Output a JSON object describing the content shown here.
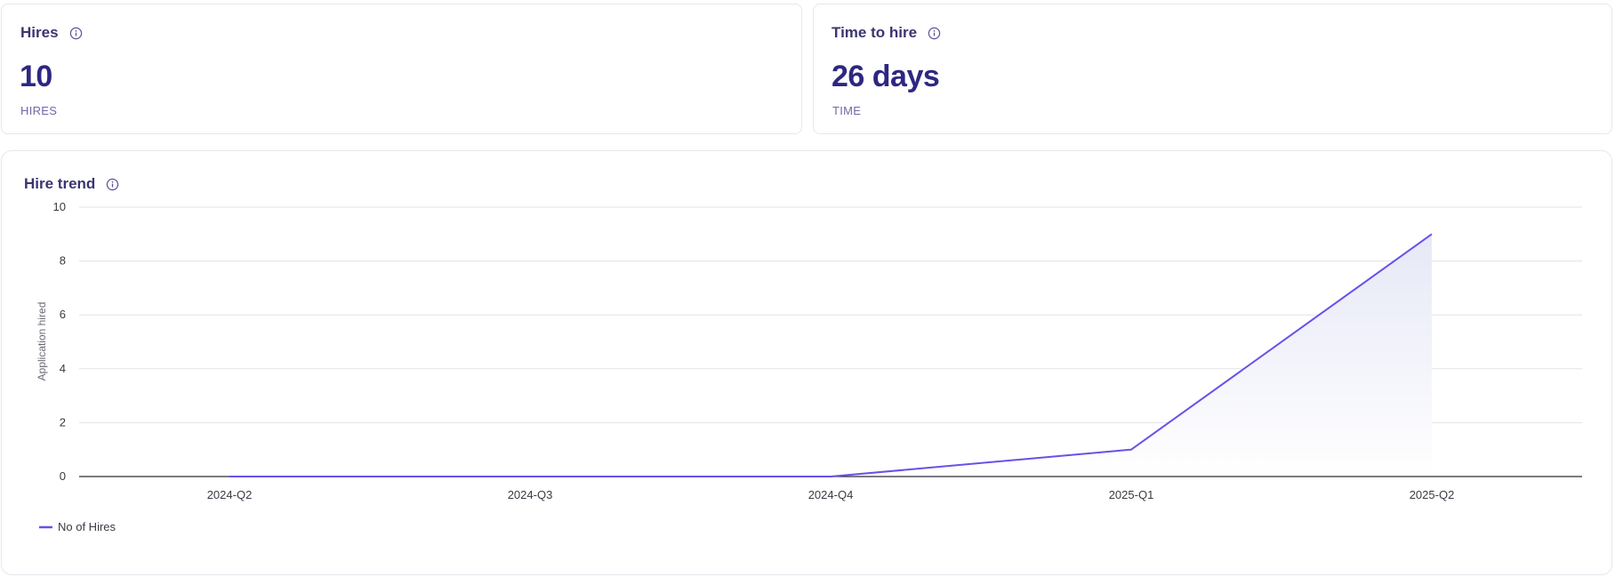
{
  "cards": [
    {
      "title": "Hires",
      "value": "10",
      "label": "HIRES",
      "icon": "info-icon"
    },
    {
      "title": "Time to hire",
      "value": "26 days",
      "label": "TIME",
      "icon": "info-icon"
    }
  ],
  "trend": {
    "title": "Hire trend",
    "icon": "info-icon"
  },
  "colors": {
    "line": "#6a50e8",
    "area_top": "#e8eaf6",
    "title": "#3a3570",
    "value": "#2e2782",
    "label": "#6e68a8"
  },
  "chart_data": {
    "type": "line",
    "title": "Hire trend",
    "xlabel": "",
    "ylabel": "Application hired",
    "categories": [
      "2024-Q2",
      "2024-Q3",
      "2024-Q4",
      "2025-Q1",
      "2025-Q2"
    ],
    "series": [
      {
        "name": "No of Hires",
        "values": [
          0,
          0,
          0,
          1,
          9
        ]
      }
    ],
    "ylim": [
      0,
      10
    ],
    "yticks": [
      0,
      2,
      4,
      6,
      8,
      10
    ],
    "grid": true,
    "legend_position": "bottom-left",
    "area_fill": true
  }
}
